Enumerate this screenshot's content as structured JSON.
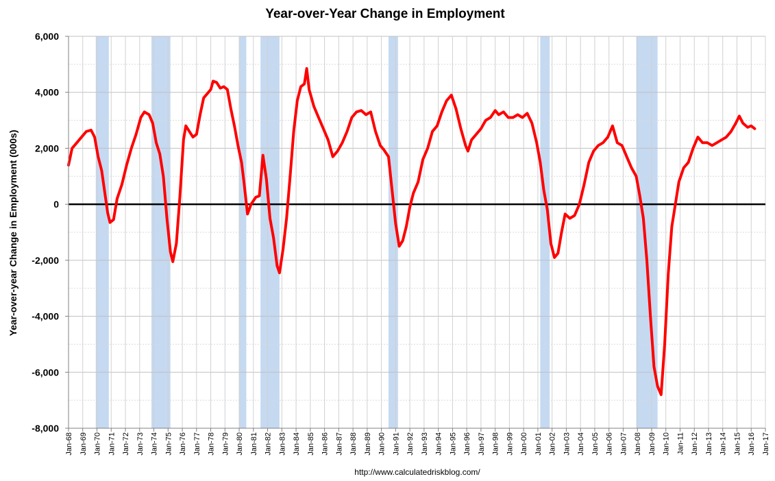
{
  "chart_data": {
    "type": "line",
    "title": "Year-over-Year Change in Employment",
    "ylabel": "Year-over-year Change in Employment (000s)",
    "xlabel": "",
    "source": "http://www.calculatedriskblog.com/",
    "ylim": [
      -8000,
      6000
    ],
    "yticks": [
      -8000,
      -6000,
      -4000,
      -2000,
      0,
      2000,
      4000,
      6000
    ],
    "ytick_labels": [
      "-8,000",
      "-6,000",
      "-4,000",
      "-2,000",
      "0",
      "2,000",
      "4,000",
      "6,000"
    ],
    "xlim": [
      "1968-01",
      "2017-01"
    ],
    "xtick_labels": [
      "Jan-68",
      "Jan-69",
      "Jan-70",
      "Jan-71",
      "Jan-72",
      "Jan-73",
      "Jan-74",
      "Jan-75",
      "Jan-76",
      "Jan-77",
      "Jan-78",
      "Jan-79",
      "Jan-80",
      "Jan-81",
      "Jan-82",
      "Jan-83",
      "Jan-84",
      "Jan-85",
      "Jan-86",
      "Jan-87",
      "Jan-88",
      "Jan-89",
      "Jan-90",
      "Jan-91",
      "Jan-92",
      "Jan-93",
      "Jan-94",
      "Jan-95",
      "Jan-96",
      "Jan-97",
      "Jan-98",
      "Jan-99",
      "Jan-00",
      "Jan-01",
      "Jan-02",
      "Jan-03",
      "Jan-04",
      "Jan-05",
      "Jan-06",
      "Jan-07",
      "Jan-08",
      "Jan-09",
      "Jan-10",
      "Jan-11",
      "Jan-12",
      "Jan-13",
      "Jan-14",
      "Jan-15",
      "Jan-16",
      "Jan-17"
    ],
    "grid": true,
    "line_color": "#ff0000",
    "zero_line_color": "#000000",
    "recession_color": "#c5d9f1",
    "recessions": [
      {
        "start": "1969-12",
        "end": "1970-11"
      },
      {
        "start": "1973-11",
        "end": "1975-03"
      },
      {
        "start": "1980-01",
        "end": "1980-07"
      },
      {
        "start": "1981-07",
        "end": "1982-11"
      },
      {
        "start": "1990-07",
        "end": "1991-03"
      },
      {
        "start": "2001-03",
        "end": "2001-11"
      },
      {
        "start": "2007-12",
        "end": "2009-06"
      }
    ],
    "series": [
      {
        "values": [
          [
            "1968-01",
            1400
          ],
          [
            "1968-04",
            2000
          ],
          [
            "1968-08",
            2200
          ],
          [
            "1968-12",
            2400
          ],
          [
            "1969-04",
            2600
          ],
          [
            "1969-08",
            2650
          ],
          [
            "1969-11",
            2400
          ],
          [
            "1970-02",
            1700
          ],
          [
            "1970-05",
            1200
          ],
          [
            "1970-08",
            300
          ],
          [
            "1970-10",
            -300
          ],
          [
            "1970-12",
            -650
          ],
          [
            "1971-03",
            -550
          ],
          [
            "1971-06",
            200
          ],
          [
            "1971-10",
            700
          ],
          [
            "1972-02",
            1400
          ],
          [
            "1972-06",
            2000
          ],
          [
            "1972-10",
            2500
          ],
          [
            "1973-02",
            3100
          ],
          [
            "1973-05",
            3300
          ],
          [
            "1973-09",
            3200
          ],
          [
            "1973-12",
            2900
          ],
          [
            "1974-03",
            2200
          ],
          [
            "1974-06",
            1800
          ],
          [
            "1974-09",
            1000
          ],
          [
            "1974-12",
            -500
          ],
          [
            "1975-03",
            -1700
          ],
          [
            "1975-05",
            -2050
          ],
          [
            "1975-08",
            -1400
          ],
          [
            "1975-11",
            300
          ],
          [
            "1976-02",
            2300
          ],
          [
            "1976-04",
            2800
          ],
          [
            "1976-07",
            2600
          ],
          [
            "1976-10",
            2400
          ],
          [
            "1977-01",
            2500
          ],
          [
            "1977-04",
            3200
          ],
          [
            "1977-07",
            3800
          ],
          [
            "1977-10",
            3950
          ],
          [
            "1978-01",
            4100
          ],
          [
            "1978-03",
            4400
          ],
          [
            "1978-06",
            4350
          ],
          [
            "1978-09",
            4150
          ],
          [
            "1978-12",
            4200
          ],
          [
            "1979-03",
            4100
          ],
          [
            "1979-06",
            3400
          ],
          [
            "1979-09",
            2800
          ],
          [
            "1979-12",
            2100
          ],
          [
            "1980-03",
            1500
          ],
          [
            "1980-05",
            800
          ],
          [
            "1980-08",
            -350
          ],
          [
            "1980-11",
            0
          ],
          [
            "1981-03",
            250
          ],
          [
            "1981-06",
            300
          ],
          [
            "1981-09",
            1750
          ],
          [
            "1981-12",
            900
          ],
          [
            "1982-03",
            -500
          ],
          [
            "1982-06",
            -1200
          ],
          [
            "1982-09",
            -2200
          ],
          [
            "1982-11",
            -2450
          ],
          [
            "1983-02",
            -1600
          ],
          [
            "1983-05",
            -500
          ],
          [
            "1983-08",
            1000
          ],
          [
            "1983-11",
            2600
          ],
          [
            "1984-02",
            3700
          ],
          [
            "1984-05",
            4200
          ],
          [
            "1984-08",
            4300
          ],
          [
            "1984-10",
            4850
          ],
          [
            "1984-12",
            4100
          ],
          [
            "1985-04",
            3500
          ],
          [
            "1985-08",
            3100
          ],
          [
            "1985-12",
            2700
          ],
          [
            "1986-04",
            2300
          ],
          [
            "1986-08",
            1700
          ],
          [
            "1986-12",
            1900
          ],
          [
            "1987-04",
            2200
          ],
          [
            "1987-08",
            2600
          ],
          [
            "1987-12",
            3100
          ],
          [
            "1988-04",
            3300
          ],
          [
            "1988-08",
            3350
          ],
          [
            "1988-12",
            3200
          ],
          [
            "1989-04",
            3300
          ],
          [
            "1989-08",
            2600
          ],
          [
            "1989-12",
            2100
          ],
          [
            "1990-03",
            1950
          ],
          [
            "1990-07",
            1700
          ],
          [
            "1990-10",
            500
          ],
          [
            "1991-01",
            -700
          ],
          [
            "1991-04",
            -1500
          ],
          [
            "1991-07",
            -1300
          ],
          [
            "1991-10",
            -800
          ],
          [
            "1992-01",
            -100
          ],
          [
            "1992-04",
            400
          ],
          [
            "1992-08",
            800
          ],
          [
            "1992-12",
            1600
          ],
          [
            "1993-04",
            2000
          ],
          [
            "1993-08",
            2600
          ],
          [
            "1993-12",
            2800
          ],
          [
            "1994-04",
            3300
          ],
          [
            "1994-08",
            3700
          ],
          [
            "1994-12",
            3900
          ],
          [
            "1995-04",
            3400
          ],
          [
            "1995-08",
            2700
          ],
          [
            "1995-12",
            2100
          ],
          [
            "1996-02",
            1900
          ],
          [
            "1996-05",
            2300
          ],
          [
            "1996-09",
            2500
          ],
          [
            "1997-01",
            2700
          ],
          [
            "1997-05",
            3000
          ],
          [
            "1997-09",
            3100
          ],
          [
            "1998-01",
            3350
          ],
          [
            "1998-04",
            3200
          ],
          [
            "1998-08",
            3300
          ],
          [
            "1998-12",
            3100
          ],
          [
            "1999-04",
            3100
          ],
          [
            "1999-08",
            3200
          ],
          [
            "1999-12",
            3100
          ],
          [
            "2000-04",
            3250
          ],
          [
            "2000-08",
            2900
          ],
          [
            "2000-12",
            2200
          ],
          [
            "2001-03",
            1500
          ],
          [
            "2001-06",
            500
          ],
          [
            "2001-09",
            -200
          ],
          [
            "2001-12",
            -1400
          ],
          [
            "2002-03",
            -1900
          ],
          [
            "2002-06",
            -1750
          ],
          [
            "2002-09",
            -1000
          ],
          [
            "2002-12",
            -350
          ],
          [
            "2003-04",
            -500
          ],
          [
            "2003-08",
            -400
          ],
          [
            "2003-12",
            0
          ],
          [
            "2004-04",
            700
          ],
          [
            "2004-08",
            1500
          ],
          [
            "2004-12",
            1900
          ],
          [
            "2005-04",
            2100
          ],
          [
            "2005-08",
            2200
          ],
          [
            "2005-12",
            2400
          ],
          [
            "2006-04",
            2800
          ],
          [
            "2006-08",
            2200
          ],
          [
            "2006-12",
            2100
          ],
          [
            "2007-04",
            1700
          ],
          [
            "2007-08",
            1300
          ],
          [
            "2007-12",
            1000
          ],
          [
            "2008-03",
            300
          ],
          [
            "2008-06",
            -500
          ],
          [
            "2008-09",
            -2000
          ],
          [
            "2008-12",
            -4000
          ],
          [
            "2009-03",
            -5800
          ],
          [
            "2009-06",
            -6500
          ],
          [
            "2009-09",
            -6800
          ],
          [
            "2009-12",
            -5000
          ],
          [
            "2010-03",
            -2500
          ],
          [
            "2010-06",
            -800
          ],
          [
            "2010-09",
            0
          ],
          [
            "2010-12",
            800
          ],
          [
            "2011-04",
            1300
          ],
          [
            "2011-08",
            1500
          ],
          [
            "2011-12",
            2000
          ],
          [
            "2012-04",
            2400
          ],
          [
            "2012-08",
            2200
          ],
          [
            "2012-12",
            2200
          ],
          [
            "2013-04",
            2100
          ],
          [
            "2013-08",
            2200
          ],
          [
            "2013-12",
            2300
          ],
          [
            "2014-04",
            2400
          ],
          [
            "2014-08",
            2600
          ],
          [
            "2014-12",
            2900
          ],
          [
            "2015-03",
            3150
          ],
          [
            "2015-06",
            2900
          ],
          [
            "2015-10",
            2750
          ],
          [
            "2016-01",
            2800
          ],
          [
            "2016-04",
            2700
          ]
        ]
      }
    ]
  }
}
